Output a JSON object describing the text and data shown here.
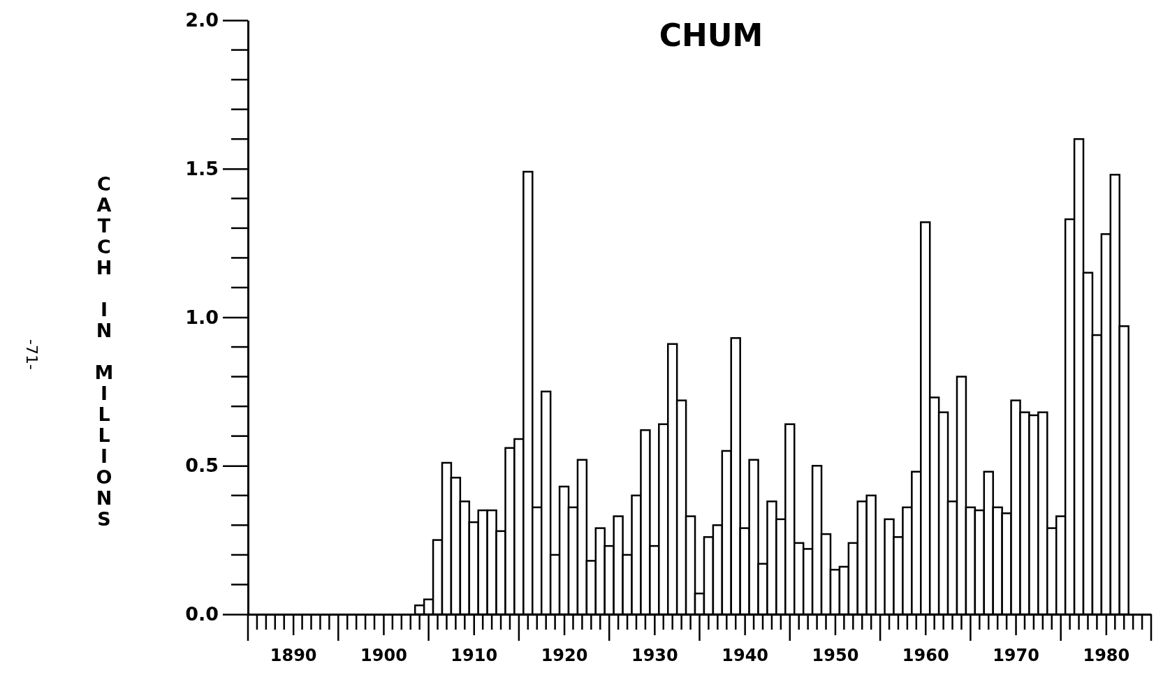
{
  "chart_data": {
    "type": "bar",
    "title": "CHUM",
    "ylabel": "CATCH IN MILLIONS",
    "annotations": [
      "-71-"
    ],
    "x": [
      1904,
      1905,
      1906,
      1907,
      1908,
      1909,
      1910,
      1911,
      1912,
      1913,
      1914,
      1915,
      1916,
      1917,
      1918,
      1919,
      1920,
      1921,
      1922,
      1923,
      1924,
      1925,
      1926,
      1927,
      1928,
      1929,
      1930,
      1931,
      1932,
      1933,
      1934,
      1935,
      1936,
      1937,
      1938,
      1939,
      1940,
      1941,
      1942,
      1943,
      1944,
      1945,
      1946,
      1947,
      1948,
      1949,
      1950,
      1951,
      1952,
      1953,
      1954,
      1955,
      1956,
      1957,
      1958,
      1959,
      1960,
      1961,
      1962,
      1963,
      1964,
      1965,
      1966,
      1967,
      1968,
      1969,
      1970,
      1971,
      1972,
      1973,
      1974,
      1975,
      1976,
      1977,
      1978,
      1979,
      1980,
      1981,
      1982
    ],
    "values": [
      0.03,
      0.05,
      0.25,
      0.51,
      0.46,
      0.38,
      0.31,
      0.35,
      0.35,
      0.28,
      0.56,
      0.59,
      1.49,
      0.36,
      0.75,
      0.2,
      0.43,
      0.36,
      0.52,
      0.18,
      0.29,
      0.23,
      0.33,
      0.2,
      0.4,
      0.62,
      0.23,
      0.64,
      0.91,
      0.72,
      0.33,
      0.07,
      0.26,
      0.3,
      0.55,
      0.93,
      0.29,
      0.52,
      0.17,
      0.38,
      0.32,
      0.64,
      0.24,
      0.22,
      0.5,
      0.27,
      0.15,
      0.16,
      0.24,
      0.38,
      0.4,
      0,
      0.32,
      0.26,
      0.36,
      0.48,
      1.32,
      0.73,
      0.68,
      0.38,
      0.8,
      0.36,
      0.35,
      0.48,
      0.36,
      0.34,
      0.72,
      0.68,
      0.67,
      0.68,
      0.29,
      0.33,
      1.33,
      1.6,
      1.15,
      0.94,
      1.28,
      1.48,
      0.97
    ],
    "color": "#ffffff",
    "xlim": [
      1885,
      1985
    ],
    "xticks": [
      1890,
      1900,
      1910,
      1920,
      1930,
      1940,
      1950,
      1960,
      1970,
      1980
    ],
    "ylim": [
      0,
      2
    ],
    "yticks": [
      {
        "value": 0,
        "label": "0.0"
      },
      {
        "value": 0.5,
        "label": "0.5"
      },
      {
        "value": 1,
        "label": "1.0"
      },
      {
        "value": 1.5,
        "label": "1.5"
      },
      {
        "value": 2,
        "label": "2.0"
      }
    ]
  }
}
